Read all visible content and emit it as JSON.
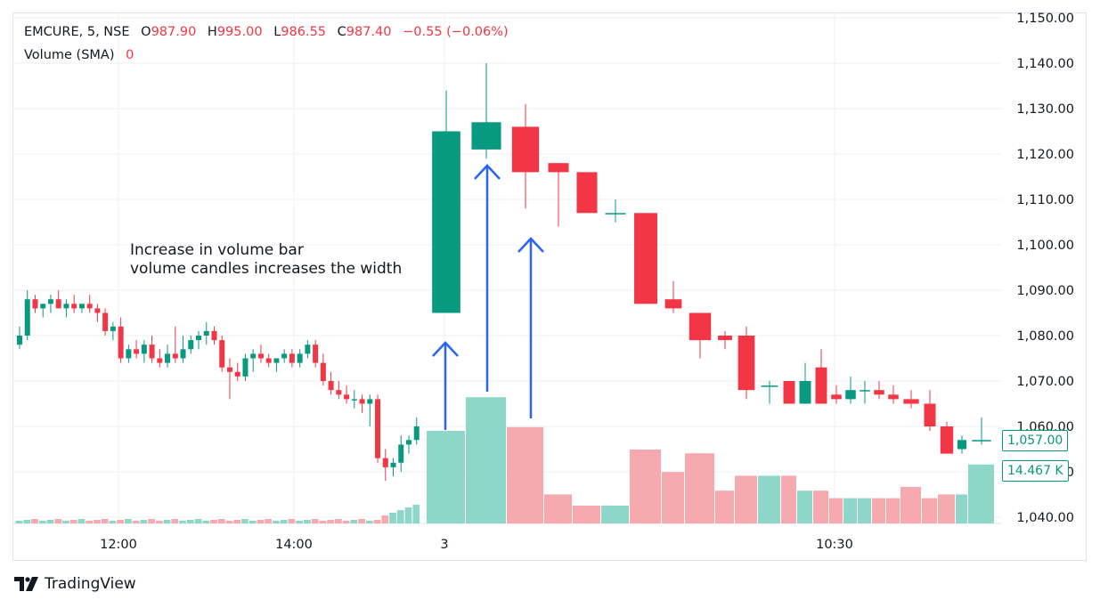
{
  "legend": {
    "symbol": "EMCURE, 5, NSE",
    "open_label": "O",
    "open": "987.90",
    "high_label": "H",
    "high": "995.00",
    "low_label": "L",
    "low": "986.55",
    "close_label": "C",
    "close": "987.40",
    "change": "−0.55 (−0.06%)",
    "volume_label": "Volume (SMA)",
    "volume_value": "0"
  },
  "annotation": {
    "line1": "Increase in volume bar",
    "line2": "volume candles increases the width"
  },
  "tags": {
    "last_price": "1,057.00",
    "volume": "14.467 K"
  },
  "branding": {
    "logo_text": "TradingView",
    "logo_icon": "tradingview-logo-icon"
  },
  "colors": {
    "up": "#089981",
    "down": "#f23645",
    "vol_up": "#8ed7c8",
    "vol_down": "#f7a9b0",
    "arrow": "#2962ff",
    "grid": "#eef0f4",
    "text": "#131722"
  },
  "chart_data": {
    "type": "candlestick",
    "ylim": [
      1038,
      1150
    ],
    "yticks": [
      "1,040.00",
      "1,050.00",
      "1,060.00",
      "1,070.00",
      "1,080.00",
      "1,090.00",
      "1,100.00",
      "1,110.00",
      "1,120.00",
      "1,130.00",
      "1,140.00",
      "1,150.00"
    ],
    "ytick_values": [
      1040,
      1050,
      1060,
      1070,
      1080,
      1090,
      1100,
      1110,
      1120,
      1130,
      1140,
      1150
    ],
    "xticks": [
      "12:00",
      "14:00",
      "3",
      "10:30"
    ],
    "small_candles": [
      [
        1078,
        1082,
        1077,
        1080
      ],
      [
        1080,
        1090,
        1079,
        1088
      ],
      [
        1088,
        1089,
        1085,
        1086
      ],
      [
        1086,
        1087,
        1084,
        1087
      ],
      [
        1087,
        1089,
        1085,
        1088
      ],
      [
        1088,
        1090,
        1086,
        1086
      ],
      [
        1086,
        1088,
        1084,
        1087
      ],
      [
        1087,
        1089,
        1085,
        1086
      ],
      [
        1086,
        1087,
        1085,
        1087
      ],
      [
        1087,
        1089,
        1085,
        1086
      ],
      [
        1086,
        1087,
        1083,
        1085
      ],
      [
        1085,
        1086,
        1080,
        1081
      ],
      [
        1081,
        1083,
        1079,
        1082
      ],
      [
        1082,
        1084,
        1074,
        1075
      ],
      [
        1075,
        1078,
        1074,
        1077
      ],
      [
        1077,
        1079,
        1075,
        1076
      ],
      [
        1076,
        1079,
        1074,
        1078
      ],
      [
        1078,
        1080,
        1074,
        1075
      ],
      [
        1075,
        1077,
        1073,
        1074
      ],
      [
        1074,
        1078,
        1073,
        1076
      ],
      [
        1076,
        1082,
        1074,
        1075
      ],
      [
        1075,
        1080,
        1074,
        1077
      ],
      [
        1077,
        1080,
        1076,
        1079
      ],
      [
        1079,
        1081,
        1077,
        1080
      ],
      [
        1080,
        1083,
        1078,
        1081
      ],
      [
        1081,
        1082,
        1078,
        1079
      ],
      [
        1079,
        1080,
        1072,
        1073
      ],
      [
        1073,
        1075,
        1066,
        1072
      ],
      [
        1072,
        1074,
        1070,
        1071
      ],
      [
        1071,
        1076,
        1070,
        1075
      ],
      [
        1075,
        1077,
        1072,
        1076
      ],
      [
        1076,
        1078,
        1074,
        1075
      ],
      [
        1075,
        1076,
        1073,
        1074
      ],
      [
        1074,
        1075,
        1072,
        1075
      ],
      [
        1075,
        1077,
        1074,
        1076
      ],
      [
        1076,
        1077,
        1073,
        1074
      ],
      [
        1074,
        1077,
        1073,
        1076
      ],
      [
        1076,
        1079,
        1075,
        1078
      ],
      [
        1078,
        1079,
        1073,
        1074
      ],
      [
        1074,
        1076,
        1069,
        1070
      ],
      [
        1070,
        1072,
        1067,
        1068
      ],
      [
        1068,
        1070,
        1066,
        1067
      ],
      [
        1067,
        1069,
        1065,
        1066
      ],
      [
        1066,
        1068,
        1064,
        1066
      ],
      [
        1066,
        1067,
        1063,
        1065
      ],
      [
        1065,
        1067,
        1060,
        1066
      ],
      [
        1066,
        1067,
        1052,
        1053
      ],
      [
        1053,
        1055,
        1048,
        1051
      ],
      [
        1051,
        1053,
        1049,
        1052
      ],
      [
        1052,
        1058,
        1050,
        1056
      ],
      [
        1056,
        1058,
        1054,
        1057
      ],
      [
        1057,
        1062,
        1056,
        1060
      ]
    ],
    "big_candles": [
      [
        1085,
        1134,
        1085,
        1125
      ],
      [
        1121,
        1140,
        1119,
        1127
      ],
      [
        1126,
        1131,
        1108,
        1116
      ],
      [
        1118,
        1118,
        1104,
        1116
      ],
      [
        1116,
        1116,
        1107,
        1107
      ],
      [
        1107,
        1110,
        1105,
        1107
      ],
      [
        1107,
        1107,
        1087,
        1087
      ],
      [
        1088,
        1092,
        1085,
        1086
      ],
      [
        1085,
        1085,
        1075,
        1079
      ],
      [
        1080,
        1081,
        1077,
        1079
      ],
      [
        1080,
        1082,
        1066,
        1068
      ],
      [
        1069,
        1070,
        1065,
        1069
      ],
      [
        1070,
        1070,
        1065,
        1065
      ],
      [
        1065,
        1074,
        1065,
        1070
      ],
      [
        1073,
        1077,
        1065,
        1065
      ],
      [
        1067,
        1069,
        1065,
        1066
      ],
      [
        1066,
        1071,
        1065,
        1068
      ],
      [
        1068,
        1070,
        1065,
        1068
      ],
      [
        1068,
        1070,
        1066,
        1067
      ],
      [
        1067,
        1069,
        1065,
        1066
      ],
      [
        1066,
        1068,
        1064,
        1065
      ],
      [
        1065,
        1068,
        1059,
        1060
      ],
      [
        1060,
        1061,
        1054,
        1054
      ],
      [
        1055,
        1058,
        1054,
        1057
      ],
      [
        1057,
        1062,
        1056,
        1057
      ]
    ],
    "big_volumes": [
      58,
      67,
      59,
      41,
      38,
      38,
      53,
      47,
      52,
      42,
      46,
      46,
      46,
      42,
      42,
      40,
      40,
      40,
      40,
      40,
      43,
      40,
      41,
      41,
      49
    ]
  }
}
